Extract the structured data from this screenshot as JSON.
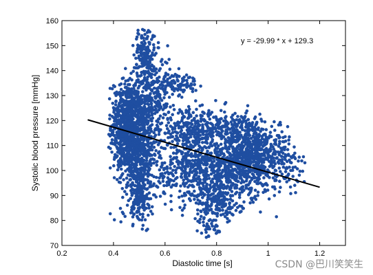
{
  "chart_data": {
    "type": "scatter",
    "title": "",
    "xlabel": "Diastolic time [s]",
    "ylabel": "Systolic blood pressure [mmHg]",
    "xlim": [
      0.2,
      1.3
    ],
    "ylim": [
      70,
      160
    ],
    "xticks": [
      0.2,
      0.4,
      0.6,
      0.8,
      1.0,
      1.2
    ],
    "xtick_labels": [
      "0.2",
      "0.4",
      "0.6",
      "0.8",
      "1",
      "1.2"
    ],
    "yticks": [
      70,
      80,
      90,
      100,
      110,
      120,
      130,
      140,
      150,
      160
    ],
    "ytick_labels": [
      "70",
      "80",
      "90",
      "100",
      "110",
      "120",
      "130",
      "140",
      "150",
      "160"
    ],
    "grid": false,
    "legend": "none",
    "point_color": "#1f4ea1",
    "line_color": "#000000",
    "fit_line": {
      "slope": -29.99,
      "intercept": 129.3,
      "x": [
        0.3,
        1.2
      ]
    },
    "annotation": "y = -29.99 * x + 129.3",
    "clusters": [
      {
        "cx": 0.45,
        "cy": 118,
        "sx": 0.03,
        "sy": 9,
        "n": 650
      },
      {
        "cx": 0.5,
        "cy": 108,
        "sx": 0.035,
        "sy": 12,
        "n": 650
      },
      {
        "cx": 0.52,
        "cy": 147,
        "sx": 0.02,
        "sy": 5,
        "n": 160
      },
      {
        "cx": 0.55,
        "cy": 130,
        "sx": 0.04,
        "sy": 8,
        "n": 300
      },
      {
        "cx": 0.65,
        "cy": 135,
        "sx": 0.04,
        "sy": 2,
        "n": 90
      },
      {
        "cx": 0.72,
        "cy": 100,
        "sx": 0.08,
        "sy": 6,
        "n": 450
      },
      {
        "cx": 0.9,
        "cy": 102,
        "sx": 0.08,
        "sy": 6,
        "n": 600
      },
      {
        "cx": 0.7,
        "cy": 116,
        "sx": 0.05,
        "sy": 4,
        "n": 250
      },
      {
        "cx": 0.85,
        "cy": 116,
        "sx": 0.06,
        "sy": 4,
        "n": 250
      },
      {
        "cx": 0.97,
        "cy": 108,
        "sx": 0.05,
        "sy": 6,
        "n": 260
      },
      {
        "cx": 0.8,
        "cy": 87,
        "sx": 0.05,
        "sy": 4,
        "n": 200
      },
      {
        "cx": 0.77,
        "cy": 76,
        "sx": 0.02,
        "sy": 2,
        "n": 30
      },
      {
        "cx": 0.5,
        "cy": 88,
        "sx": 0.02,
        "sy": 4,
        "n": 100
      },
      {
        "cx": 1.07,
        "cy": 103,
        "sx": 0.04,
        "sy": 6,
        "n": 60
      }
    ]
  },
  "watermark": "CSDN @巴川笑笑生"
}
